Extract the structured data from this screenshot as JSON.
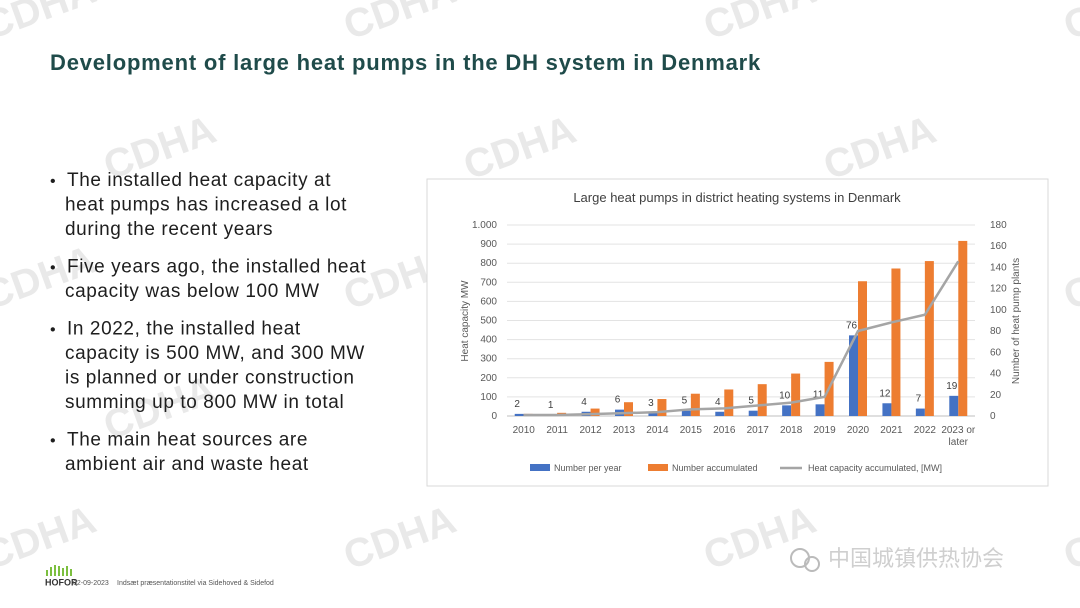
{
  "title": "Development of large heat pumps in the DH system in Denmark",
  "bullets": [
    {
      "lines": [
        "The installed heat capacity at",
        "heat pumps has increased a lot",
        "during the recent years"
      ]
    },
    {
      "lines": [
        "Five years ago, the installed heat",
        "capacity was below 100 MW"
      ]
    },
    {
      "lines": [
        "In 2022, the installed heat",
        "capacity is 500 MW, and 300 MW",
        "is planned or under construction",
        "summing up to 800 MW in total"
      ]
    },
    {
      "lines": [
        "The main heat sources are",
        "ambient air and waste heat"
      ]
    }
  ],
  "footer": {
    "logo": "HOFOR",
    "date": "02-09-2023",
    "text": "Indsæt præsentationstitel via Sidehoved & Sidefod"
  },
  "watermark": "CDHA",
  "wechat_label": "中国城镇供热协会",
  "chart_data": {
    "type": "bar",
    "title": "Large heat pumps in district heating systems in Denmark",
    "y_label": "Heat capacity MW",
    "y2_label": "Number of heat pump plants",
    "categories": [
      "2010",
      "2011",
      "2012",
      "2013",
      "2014",
      "2015",
      "2016",
      "2017",
      "2018",
      "2019",
      "2020",
      "2021",
      "2022",
      "2023 or later"
    ],
    "series": [
      {
        "name": "Number per year",
        "color": "#4472c4",
        "type": "bar",
        "axis": "y2",
        "values": [
          2,
          1,
          4,
          6,
          3,
          5,
          4,
          5,
          10,
          11,
          76,
          12,
          7,
          19
        ]
      },
      {
        "name": "Number accumulated",
        "color": "#ed7d31",
        "type": "bar",
        "axis": "y2",
        "values": [
          2,
          3,
          7,
          13,
          16,
          21,
          25,
          30,
          40,
          51,
          127,
          139,
          146,
          165
        ]
      },
      {
        "name": "Heat capacity accumulated, [MW]",
        "color": "#a5a5a5",
        "type": "line",
        "values": [
          5,
          5,
          10,
          15,
          20,
          35,
          40,
          55,
          70,
          100,
          445,
          490,
          530,
          810
        ]
      }
    ],
    "ylim": [
      0,
      1000
    ],
    "yticks": [
      0,
      100,
      200,
      300,
      400,
      500,
      600,
      700,
      800,
      900,
      {
        "value": 1000,
        "label": "1.000"
      }
    ],
    "y2lim": [
      0,
      180
    ],
    "y2ticks": [
      0,
      20,
      40,
      60,
      80,
      100,
      120,
      140,
      160,
      180
    ],
    "grid": true,
    "legend": "bottom"
  }
}
